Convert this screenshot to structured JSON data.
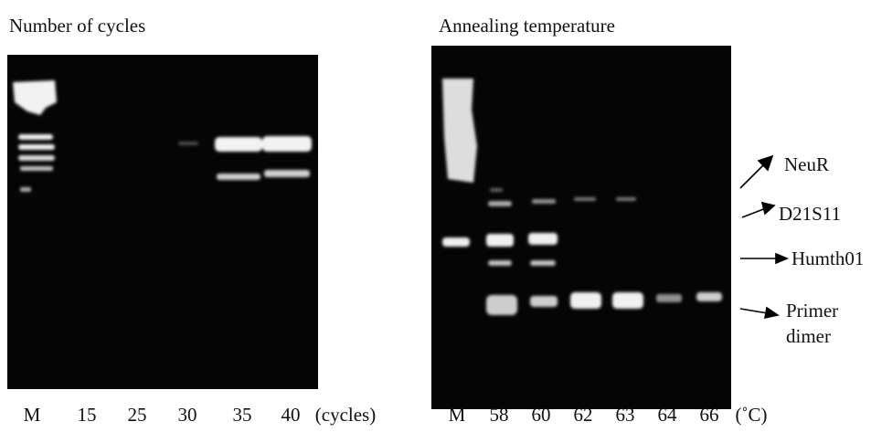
{
  "left_panel": {
    "title": "Number of cycles",
    "lane_labels": [
      "M",
      "15",
      "25",
      "30",
      "35",
      "40"
    ],
    "unit": "(cycles)"
  },
  "right_panel": {
    "title": "Annealing temperature",
    "lane_labels": [
      "M",
      "58",
      "60",
      "62",
      "63",
      "64",
      "66"
    ],
    "unit": "(˚C)",
    "annotations": [
      "NeuR",
      "D21S11",
      "Humth01",
      "Primer dimer"
    ]
  }
}
